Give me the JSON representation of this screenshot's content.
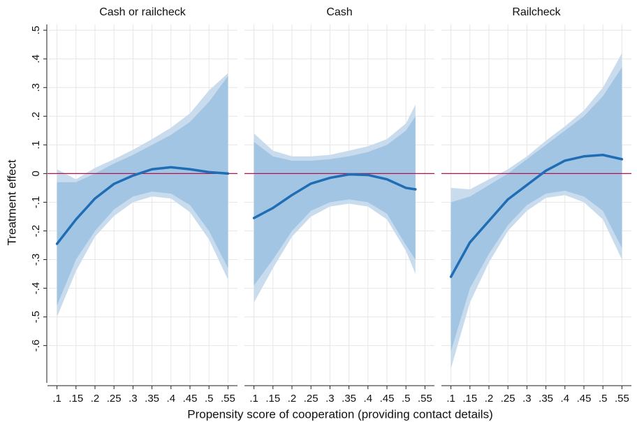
{
  "xlabel": "Propensity score of cooperation (providing contact details)",
  "y_axis": {
    "label": "Treatment effect",
    "lim": [
      -0.73,
      0.52
    ],
    "ticks": [
      {
        "value": 0.5,
        "label": ".5"
      },
      {
        "value": 0.4,
        "label": ".4"
      },
      {
        "value": 0.3,
        "label": ".3"
      },
      {
        "value": 0.2,
        "label": ".2"
      },
      {
        "value": 0.1,
        "label": ".1"
      },
      0,
      {
        "value": -0.1,
        "label": "-.1"
      },
      {
        "value": -0.2,
        "label": "-.2"
      },
      {
        "value": -0.3,
        "label": "-.3"
      },
      {
        "value": -0.4,
        "label": "-.4"
      },
      {
        "value": -0.5,
        "label": "-.5"
      },
      {
        "value": -0.6,
        "label": "-.6"
      }
    ]
  },
  "chart_data": [
    {
      "type": "line",
      "title": "Cash or railcheck",
      "grid": true,
      "hline": 0,
      "hline_color": "#b5124e",
      "xlim": [
        0.075,
        0.575
      ],
      "xticks": [
        {
          "value": 0.1,
          "label": ".1"
        },
        {
          "value": 0.15,
          "label": ".15"
        },
        {
          "value": 0.2,
          "label": ".2"
        },
        {
          "value": 0.25,
          "label": ".25"
        },
        {
          "value": 0.3,
          "label": ".3"
        },
        {
          "value": 0.35,
          "label": ".35"
        },
        {
          "value": 0.4,
          "label": ".4"
        },
        {
          "value": 0.45,
          "label": ".45"
        },
        {
          "value": 0.5,
          "label": ".5"
        },
        {
          "value": 0.55,
          "label": ".55"
        }
      ],
      "x": [
        0.1,
        0.15,
        0.2,
        0.25,
        0.3,
        0.35,
        0.4,
        0.45,
        0.5,
        0.55
      ],
      "bands": [
        {
          "color": "#c9dcee",
          "upper": [
            0.015,
            -0.02,
            0.02,
            0.05,
            0.083,
            0.12,
            0.16,
            0.21,
            0.29,
            0.35
          ],
          "lower": [
            -0.5,
            -0.34,
            -0.22,
            -0.148,
            -0.1,
            -0.08,
            -0.087,
            -0.135,
            -0.23,
            -0.37
          ]
        },
        {
          "color": "#a2c5e3",
          "upper": [
            -0.03,
            -0.03,
            0.0,
            0.035,
            0.065,
            0.1,
            0.135,
            0.18,
            0.25,
            0.34
          ],
          "lower": [
            -0.46,
            -0.3,
            -0.2,
            -0.125,
            -0.08,
            -0.063,
            -0.07,
            -0.11,
            -0.2,
            -0.33
          ]
        }
      ],
      "series": [
        {
          "color": "#1f6db5",
          "values": [
            -0.245,
            -0.16,
            -0.087,
            -0.036,
            -0.007,
            0.015,
            0.022,
            0.015,
            0.005,
            0.0
          ]
        }
      ]
    },
    {
      "type": "line",
      "title": "Cash",
      "grid": true,
      "hline": 0,
      "hline_color": "#b5124e",
      "xlim": [
        0.075,
        0.575
      ],
      "xticks": [
        {
          "value": 0.1,
          "label": ".1"
        },
        {
          "value": 0.15,
          "label": ".15"
        },
        {
          "value": 0.2,
          "label": ".2"
        },
        {
          "value": 0.25,
          "label": ".25"
        },
        {
          "value": 0.3,
          "label": ".3"
        },
        {
          "value": 0.35,
          "label": ".35"
        },
        {
          "value": 0.4,
          "label": ".4"
        },
        {
          "value": 0.45,
          "label": ".45"
        },
        {
          "value": 0.5,
          "label": ".5"
        },
        {
          "value": 0.55,
          "label": ".55"
        }
      ],
      "x": [
        0.1,
        0.15,
        0.2,
        0.25,
        0.3,
        0.35,
        0.4,
        0.45,
        0.5,
        0.525
      ],
      "bands": [
        {
          "color": "#c9dcee",
          "upper": [
            0.14,
            0.08,
            0.06,
            0.06,
            0.065,
            0.08,
            0.095,
            0.12,
            0.175,
            0.24
          ],
          "lower": [
            -0.45,
            -0.33,
            -0.22,
            -0.15,
            -0.115,
            -0.105,
            -0.115,
            -0.16,
            -0.27,
            -0.35
          ]
        },
        {
          "color": "#a2c5e3",
          "upper": [
            0.11,
            0.06,
            0.045,
            0.045,
            0.05,
            0.06,
            0.075,
            0.1,
            0.15,
            0.2
          ],
          "lower": [
            -0.39,
            -0.3,
            -0.2,
            -0.13,
            -0.1,
            -0.09,
            -0.1,
            -0.14,
            -0.25,
            -0.3
          ]
        }
      ],
      "series": [
        {
          "color": "#1f6db5",
          "values": [
            -0.155,
            -0.12,
            -0.075,
            -0.035,
            -0.015,
            -0.003,
            -0.005,
            -0.02,
            -0.05,
            -0.055
          ]
        }
      ]
    },
    {
      "type": "line",
      "title": "Railcheck",
      "grid": true,
      "hline": 0,
      "hline_color": "#b5124e",
      "xlim": [
        0.075,
        0.575
      ],
      "xticks": [
        {
          "value": 0.1,
          "label": ".1"
        },
        {
          "value": 0.15,
          "label": ".15"
        },
        {
          "value": 0.2,
          "label": ".2"
        },
        {
          "value": 0.25,
          "label": ".25"
        },
        {
          "value": 0.3,
          "label": ".3"
        },
        {
          "value": 0.35,
          "label": ".35"
        },
        {
          "value": 0.4,
          "label": ".4"
        },
        {
          "value": 0.45,
          "label": ".45"
        },
        {
          "value": 0.5,
          "label": ".5"
        },
        {
          "value": 0.55,
          "label": ".55"
        }
      ],
      "x": [
        0.1,
        0.15,
        0.2,
        0.25,
        0.3,
        0.35,
        0.4,
        0.45,
        0.5,
        0.55
      ],
      "bands": [
        {
          "color": "#c9dcee",
          "upper": [
            -0.05,
            -0.055,
            -0.02,
            0.015,
            0.06,
            0.115,
            0.165,
            0.22,
            0.3,
            0.42
          ],
          "lower": [
            -0.68,
            -0.45,
            -0.31,
            -0.2,
            -0.13,
            -0.085,
            -0.075,
            -0.1,
            -0.16,
            -0.3
          ]
        },
        {
          "color": "#a2c5e3",
          "upper": [
            -0.1,
            -0.08,
            -0.04,
            0.0,
            0.05,
            0.1,
            0.15,
            0.2,
            0.27,
            0.37
          ],
          "lower": [
            -0.62,
            -0.4,
            -0.28,
            -0.18,
            -0.11,
            -0.07,
            -0.06,
            -0.08,
            -0.13,
            -0.26
          ]
        }
      ],
      "series": [
        {
          "color": "#1f6db5",
          "values": [
            -0.36,
            -0.24,
            -0.165,
            -0.09,
            -0.04,
            0.01,
            0.045,
            0.06,
            0.065,
            0.05
          ]
        }
      ]
    }
  ]
}
